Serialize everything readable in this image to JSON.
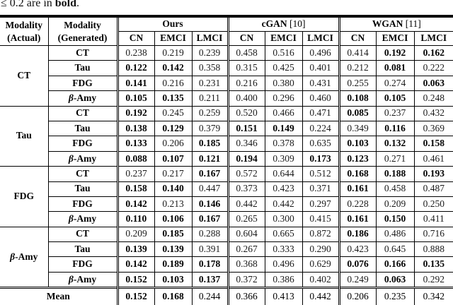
{
  "caption": {
    "prefix": "≤ 0.2 are in ",
    "bold_word": "bold",
    "suffix": "."
  },
  "table": {
    "headers": {
      "actual": [
        "Modality",
        "(Actual)"
      ],
      "generated": [
        "Modality",
        "(Generated)"
      ],
      "groups": [
        {
          "name": "Ours",
          "ref": "",
          "subcols": [
            "CN",
            "EMCI",
            "LMCI"
          ]
        },
        {
          "name": "cGAN",
          "ref": " [10]",
          "subcols": [
            "CN",
            "EMCI",
            "LMCI"
          ]
        },
        {
          "name": "WGAN",
          "ref": " [11]",
          "subcols": [
            "CN",
            "EMCI",
            "LMCI"
          ]
        }
      ]
    },
    "row_groups": [
      {
        "actual": "CT",
        "rows": [
          {
            "generated": "CT",
            "values": [
              "0.238",
              "0.219",
              "0.239",
              "0.458",
              "0.516",
              "0.496",
              "0.414",
              "0.192",
              "0.162"
            ],
            "bold": [
              0,
              0,
              0,
              0,
              0,
              0,
              0,
              1,
              1
            ]
          },
          {
            "generated": "Tau",
            "values": [
              "0.122",
              "0.142",
              "0.358",
              "0.315",
              "0.425",
              "0.401",
              "0.212",
              "0.081",
              "0.222"
            ],
            "bold": [
              1,
              1,
              0,
              0,
              0,
              0,
              0,
              1,
              0
            ]
          },
          {
            "generated": "FDG",
            "values": [
              "0.141",
              "0.216",
              "0.231",
              "0.216",
              "0.380",
              "0.431",
              "0.255",
              "0.274",
              "0.063"
            ],
            "bold": [
              1,
              0,
              0,
              0,
              0,
              0,
              0,
              0,
              1
            ]
          },
          {
            "generated": "β-Amy",
            "values": [
              "0.105",
              "0.135",
              "0.211",
              "0.400",
              "0.296",
              "0.460",
              "0.108",
              "0.105",
              "0.248"
            ],
            "bold": [
              1,
              1,
              0,
              0,
              0,
              0,
              1,
              1,
              0
            ]
          }
        ]
      },
      {
        "actual": "Tau",
        "rows": [
          {
            "generated": "CT",
            "values": [
              "0.192",
              "0.245",
              "0.259",
              "0.520",
              "0.466",
              "0.471",
              "0.085",
              "0.237",
              "0.432"
            ],
            "bold": [
              1,
              0,
              0,
              0,
              0,
              0,
              1,
              0,
              0
            ]
          },
          {
            "generated": "Tau",
            "values": [
              "0.138",
              "0.129",
              "0.379",
              "0.151",
              "0.149",
              "0.224",
              "0.349",
              "0.116",
              "0.369"
            ],
            "bold": [
              1,
              1,
              0,
              1,
              1,
              0,
              0,
              1,
              0
            ]
          },
          {
            "generated": "FDG",
            "values": [
              "0.133",
              "0.206",
              "0.185",
              "0.346",
              "0.378",
              "0.635",
              "0.103",
              "0.132",
              "0.158"
            ],
            "bold": [
              1,
              0,
              1,
              0,
              0,
              0,
              1,
              1,
              1
            ]
          },
          {
            "generated": "β-Amy",
            "values": [
              "0.088",
              "0.107",
              "0.121",
              "0.194",
              "0.309",
              "0.173",
              "0.123",
              "0.271",
              "0.461"
            ],
            "bold": [
              1,
              1,
              1,
              1,
              0,
              1,
              1,
              0,
              0
            ]
          }
        ]
      },
      {
        "actual": "FDG",
        "rows": [
          {
            "generated": "CT",
            "values": [
              "0.237",
              "0.217",
              "0.167",
              "0.572",
              "0.644",
              "0.512",
              "0.168",
              "0.188",
              "0.193"
            ],
            "bold": [
              0,
              0,
              1,
              0,
              0,
              0,
              1,
              1,
              1
            ]
          },
          {
            "generated": "Tau",
            "values": [
              "0.158",
              "0.140",
              "0.447",
              "0.373",
              "0.423",
              "0.371",
              "0.161",
              "0.458",
              "0.487"
            ],
            "bold": [
              1,
              1,
              0,
              0,
              0,
              0,
              1,
              0,
              0
            ]
          },
          {
            "generated": "FDG",
            "values": [
              "0.142",
              "0.213",
              "0.146",
              "0.442",
              "0.442",
              "0.297",
              "0.228",
              "0.209",
              "0.250"
            ],
            "bold": [
              1,
              0,
              1,
              0,
              0,
              0,
              0,
              0,
              0
            ]
          },
          {
            "generated": "β-Amy",
            "values": [
              "0.110",
              "0.106",
              "0.167",
              "0.265",
              "0.300",
              "0.415",
              "0.161",
              "0.150",
              "0.411"
            ],
            "bold": [
              1,
              1,
              1,
              0,
              0,
              0,
              1,
              1,
              0
            ]
          }
        ]
      },
      {
        "actual": "β-Amy",
        "rows": [
          {
            "generated": "CT",
            "values": [
              "0.209",
              "0.185",
              "0.288",
              "0.604",
              "0.665",
              "0.872",
              "0.186",
              "0.486",
              "0.716"
            ],
            "bold": [
              0,
              1,
              0,
              0,
              0,
              0,
              1,
              0,
              0
            ]
          },
          {
            "generated": "Tau",
            "values": [
              "0.139",
              "0.139",
              "0.391",
              "0.267",
              "0.333",
              "0.290",
              "0.423",
              "0.645",
              "0.888"
            ],
            "bold": [
              1,
              1,
              0,
              0,
              0,
              0,
              0,
              0,
              0
            ]
          },
          {
            "generated": "FDG",
            "values": [
              "0.142",
              "0.189",
              "0.178",
              "0.368",
              "0.496",
              "0.629",
              "0.076",
              "0.166",
              "0.135"
            ],
            "bold": [
              1,
              1,
              1,
              0,
              0,
              0,
              1,
              1,
              1
            ]
          },
          {
            "generated": "β-Amy",
            "values": [
              "0.152",
              "0.103",
              "0.137",
              "0.372",
              "0.386",
              "0.402",
              "0.249",
              "0.063",
              "0.292"
            ],
            "bold": [
              1,
              1,
              1,
              0,
              0,
              0,
              0,
              1,
              0
            ]
          }
        ]
      }
    ],
    "mean": {
      "label": "Mean",
      "values": [
        "0.152",
        "0.168",
        "0.244",
        "0.366",
        "0.413",
        "0.442",
        "0.206",
        "0.235",
        "0.342"
      ],
      "bold": [
        1,
        1,
        0,
        0,
        0,
        0,
        0,
        0,
        0
      ]
    }
  }
}
